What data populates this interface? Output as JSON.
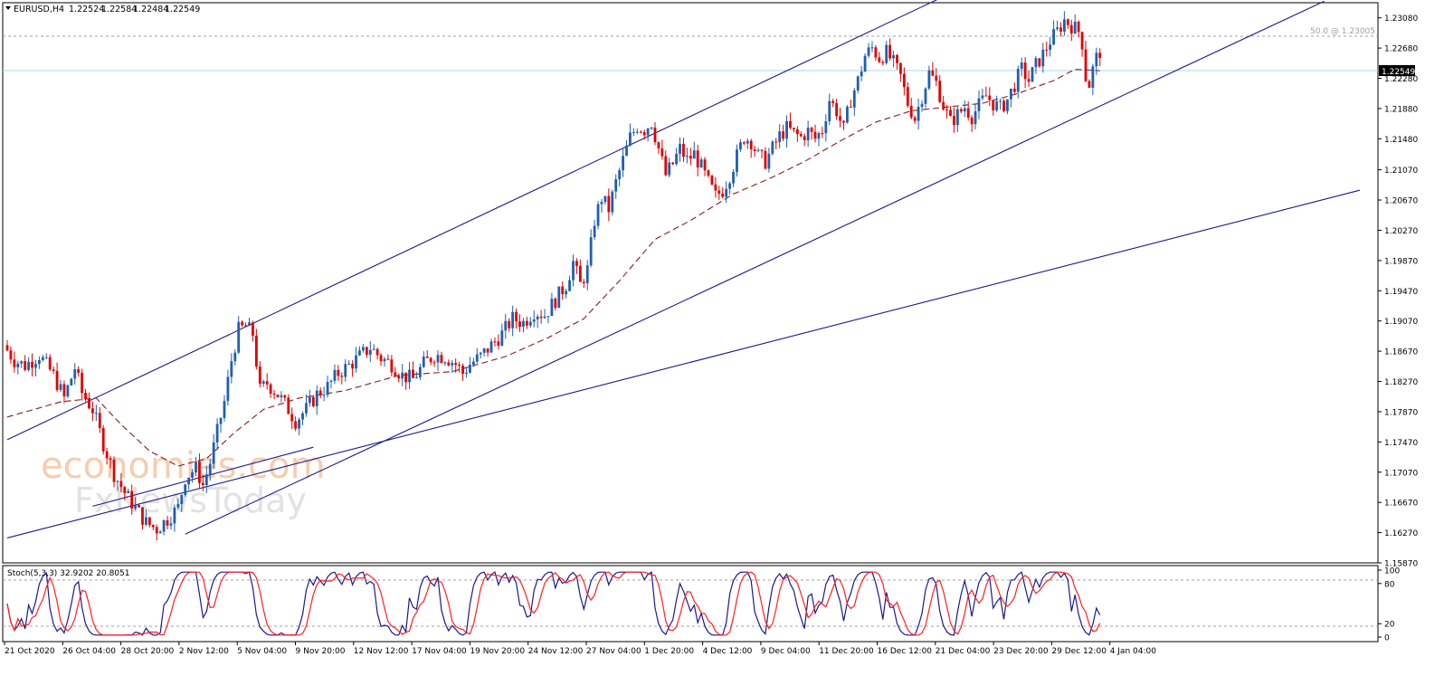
{
  "header": {
    "symbol_label": "EURUSD,H4",
    "ohlc": [
      "1.22524",
      "1.22584",
      "1.22484",
      "1.22549"
    ]
  },
  "price_axis": {
    "ticks": [
      "1.23080",
      "1.22680",
      "1.22280",
      "1.21880",
      "1.21480",
      "1.21070",
      "1.20670",
      "1.20270",
      "1.19870",
      "1.19470",
      "1.19070",
      "1.18670",
      "1.18270",
      "1.17870",
      "1.17470",
      "1.17070",
      "1.16670",
      "1.16270",
      "1.15870"
    ],
    "current_price_label": "1.22549"
  },
  "fib_label": "50.0 @ 1.23005",
  "time_axis": {
    "labels": [
      "21 Oct 2020",
      "26 Oct 04:00",
      "28 Oct 20:00",
      "2 Nov 12:00",
      "5 Nov 04:00",
      "9 Nov 20:00",
      "12 Nov 12:00",
      "17 Nov 04:00",
      "19 Nov 20:00",
      "24 Nov 12:00",
      "27 Nov 04:00",
      "1 Dec 20:00",
      "4 Dec 12:00",
      "9 Dec 04:00",
      "11 Dec 20:00",
      "16 Dec 12:00",
      "21 Dec 04:00",
      "23 Dec 20:00",
      "29 Dec 12:00",
      "4 Jan 04:00"
    ]
  },
  "stoch": {
    "label": "Stoch(5,3,3) 32.9202 20.8051",
    "axis_ticks": [
      "100",
      "80",
      "20",
      "0"
    ]
  },
  "watermark": {
    "line1": "economies.com",
    "line2": "FxNewsToday"
  },
  "colors": {
    "bull_candle": "#1f5faf",
    "bear_candle": "#e00000",
    "moving_average": "#8b1a1a",
    "trend_lines": "#1a1a8c",
    "current_price_line": "#a8d8ea",
    "stoch_main": "#1a1a8c",
    "stoch_signal": "#ff2020",
    "watermark": "#f5c4a0"
  },
  "chart_data": {
    "type": "candlestick",
    "symbol": "EURUSD",
    "timeframe": "H4",
    "ylim": [
      1.1587,
      1.2328
    ],
    "x_range_label": [
      "21 Oct 2020",
      "4 Jan 04:00"
    ],
    "key_levels": {
      "current_price": 1.22549,
      "fib_50": 1.23005
    },
    "price_path": [
      [
        0,
        1.1875
      ],
      [
        3,
        1.1855
      ],
      [
        6,
        1.1848
      ],
      [
        10,
        1.1862
      ],
      [
        14,
        1.1835
      ],
      [
        17,
        1.1805
      ],
      [
        20,
        1.1845
      ],
      [
        22,
        1.1812
      ],
      [
        25,
        1.179
      ],
      [
        28,
        1.1745
      ],
      [
        31,
        1.1705
      ],
      [
        34,
        1.168
      ],
      [
        37,
        1.166
      ],
      [
        40,
        1.164
      ],
      [
        43,
        1.1632
      ],
      [
        46,
        1.1645
      ],
      [
        49,
        1.166
      ],
      [
        51,
        1.17
      ],
      [
        54,
        1.1712
      ],
      [
        56,
        1.169
      ],
      [
        58,
        1.172
      ],
      [
        60,
        1.176
      ],
      [
        62,
        1.18
      ],
      [
        64,
        1.1855
      ],
      [
        66,
        1.1895
      ],
      [
        68,
        1.19
      ],
      [
        70,
        1.189
      ],
      [
        72,
        1.1815
      ],
      [
        74,
        1.1825
      ],
      [
        77,
        1.181
      ],
      [
        80,
        1.179
      ],
      [
        82,
        1.1775
      ],
      [
        85,
        1.179
      ],
      [
        88,
        1.181
      ],
      [
        91,
        1.182
      ],
      [
        94,
        1.1838
      ],
      [
        97,
        1.1848
      ],
      [
        100,
        1.186
      ],
      [
        103,
        1.1872
      ],
      [
        106,
        1.1858
      ],
      [
        109,
        1.185
      ],
      [
        112,
        1.1835
      ],
      [
        115,
        1.183
      ],
      [
        118,
        1.185
      ],
      [
        121,
        1.1862
      ],
      [
        124,
        1.186
      ],
      [
        127,
        1.185
      ],
      [
        129,
        1.1838
      ],
      [
        131,
        1.185
      ],
      [
        134,
        1.186
      ],
      [
        137,
        1.1875
      ],
      [
        140,
        1.189
      ],
      [
        143,
        1.191
      ],
      [
        146,
        1.1905
      ],
      [
        149,
        1.192
      ],
      [
        152,
        1.1915
      ],
      [
        155,
        1.1935
      ],
      [
        158,
        1.1955
      ],
      [
        160,
        1.1985
      ],
      [
        162,
        1.1955
      ],
      [
        164,
        1.1975
      ],
      [
        166,
        1.204
      ],
      [
        168,
        1.207
      ],
      [
        170,
        1.2055
      ],
      [
        172,
        1.209
      ],
      [
        174,
        1.212
      ],
      [
        176,
        1.215
      ],
      [
        178,
        1.2165
      ],
      [
        180,
        1.216
      ],
      [
        182,
        1.217
      ],
      [
        184,
        1.2135
      ],
      [
        186,
        1.21
      ],
      [
        188,
        1.2115
      ],
      [
        190,
        1.2135
      ],
      [
        192,
        1.212
      ],
      [
        194,
        1.2128
      ],
      [
        196,
        1.211
      ],
      [
        198,
        1.209
      ],
      [
        200,
        1.2072
      ],
      [
        202,
        1.208
      ],
      [
        204,
        1.21
      ],
      [
        206,
        1.2125
      ],
      [
        208,
        1.215
      ],
      [
        210,
        1.2145
      ],
      [
        212,
        1.2125
      ],
      [
        214,
        1.2118
      ],
      [
        216,
        1.2135
      ],
      [
        218,
        1.2152
      ],
      [
        220,
        1.2162
      ],
      [
        222,
        1.2155
      ],
      [
        224,
        1.215
      ],
      [
        226,
        1.2158
      ],
      [
        228,
        1.2148
      ],
      [
        230,
        1.216
      ],
      [
        232,
        1.22
      ],
      [
        234,
        1.2185
      ],
      [
        236,
        1.216
      ],
      [
        238,
        1.22
      ],
      [
        240,
        1.2225
      ],
      [
        242,
        1.2258
      ],
      [
        244,
        1.2268
      ],
      [
        246,
        1.2255
      ],
      [
        248,
        1.2262
      ],
      [
        250,
        1.2248
      ],
      [
        252,
        1.223
      ],
      [
        254,
        1.2195
      ],
      [
        256,
        1.2175
      ],
      [
        258,
        1.2205
      ],
      [
        260,
        1.2235
      ],
      [
        262,
        1.2222
      ],
      [
        264,
        1.2192
      ],
      [
        266,
        1.217
      ],
      [
        268,
        1.218
      ],
      [
        270,
        1.219
      ],
      [
        272,
        1.2178
      ],
      [
        274,
        1.2192
      ],
      [
        276,
        1.2205
      ],
      [
        278,
        1.2195
      ],
      [
        280,
        1.2188
      ],
      [
        282,
        1.22
      ],
      [
        284,
        1.222
      ],
      [
        286,
        1.224
      ],
      [
        288,
        1.2225
      ],
      [
        290,
        1.2245
      ],
      [
        292,
        1.226
      ],
      [
        294,
        1.2278
      ],
      [
        296,
        1.229
      ],
      [
        298,
        1.2305
      ],
      [
        300,
        1.2298
      ],
      [
        302,
        1.229
      ],
      [
        303,
        1.2275
      ],
      [
        304,
        1.223
      ],
      [
        305,
        1.222
      ],
      [
        306,
        1.224
      ],
      [
        307,
        1.2255
      ]
    ],
    "moving_average_path": [
      [
        0,
        1.178
      ],
      [
        15,
        1.18
      ],
      [
        25,
        1.1805
      ],
      [
        32,
        1.177
      ],
      [
        40,
        1.1735
      ],
      [
        48,
        1.1715
      ],
      [
        56,
        1.1725
      ],
      [
        64,
        1.176
      ],
      [
        72,
        1.179
      ],
      [
        82,
        1.1805
      ],
      [
        95,
        1.1815
      ],
      [
        110,
        1.1835
      ],
      [
        125,
        1.184
      ],
      [
        140,
        1.186
      ],
      [
        152,
        1.1885
      ],
      [
        162,
        1.191
      ],
      [
        172,
        1.196
      ],
      [
        182,
        1.2015
      ],
      [
        192,
        1.204
      ],
      [
        204,
        1.2075
      ],
      [
        214,
        1.2095
      ],
      [
        224,
        1.2118
      ],
      [
        234,
        1.2145
      ],
      [
        244,
        1.217
      ],
      [
        254,
        1.2185
      ],
      [
        264,
        1.219
      ],
      [
        274,
        1.2195
      ],
      [
        284,
        1.2208
      ],
      [
        294,
        1.2225
      ],
      [
        300,
        1.224
      ],
      [
        307,
        1.2238
      ]
    ],
    "trend_lines": [
      {
        "from": [
          0,
          1.175
        ],
        "to": [
          263,
          1.2336
        ]
      },
      {
        "from": [
          0,
          1.162
        ],
        "to": [
          380,
          1.208
        ]
      },
      {
        "from": [
          50,
          1.1625
        ],
        "to": [
          370,
          1.233
        ]
      },
      {
        "from": [
          24,
          1.1662
        ],
        "to": [
          86,
          1.174
        ]
      }
    ],
    "stochastic": {
      "main": 32.9202,
      "signal": 20.8051,
      "levels": [
        80,
        20
      ],
      "ylim": [
        0,
        100
      ]
    }
  }
}
